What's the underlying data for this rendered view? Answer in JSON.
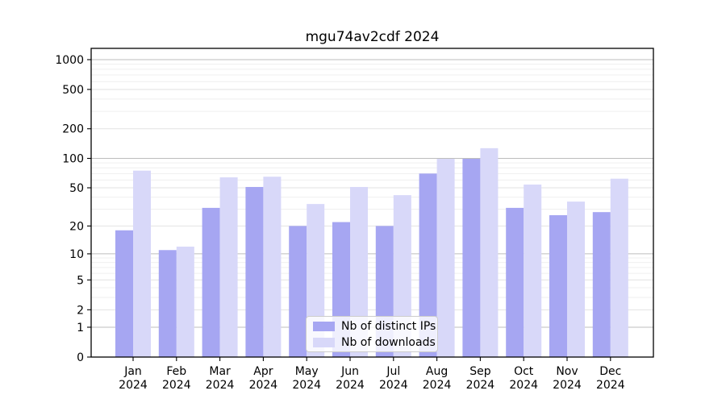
{
  "chart_data": {
    "type": "bar",
    "title": "mgu74av2cdf 2024",
    "categories": [
      "Jan 2024",
      "Feb 2024",
      "Mar 2024",
      "Apr 2024",
      "May 2024",
      "Jun 2024",
      "Jul 2024",
      "Aug 2024",
      "Sep 2024",
      "Oct 2024",
      "Nov 2024",
      "Dec 2024"
    ],
    "series": [
      {
        "name": "Nb of distinct IPs",
        "color": "#a6a6f2",
        "values": [
          18,
          11,
          31,
          51,
          20,
          22,
          20,
          70,
          99,
          31,
          26,
          28
        ]
      },
      {
        "name": "Nb of downloads",
        "color": "#d8d8f9",
        "values": [
          75,
          12,
          64,
          65,
          34,
          51,
          42,
          99,
          127,
          54,
          36,
          62
        ]
      }
    ],
    "xlabel": "",
    "ylabel": "",
    "y_axis": {
      "scale": "log1p",
      "ticks": [
        0,
        1,
        2,
        5,
        10,
        20,
        50,
        100,
        200,
        500,
        1000
      ],
      "minor_gridlines": [
        3,
        4,
        6,
        7,
        8,
        9,
        30,
        40,
        60,
        70,
        80,
        90,
        300,
        400,
        600,
        700,
        800,
        900
      ],
      "max": 1300
    },
    "legend": {
      "position": "bottom-center",
      "entries": [
        "Nb of distinct IPs",
        "Nb of downloads"
      ]
    },
    "grid": "on"
  }
}
